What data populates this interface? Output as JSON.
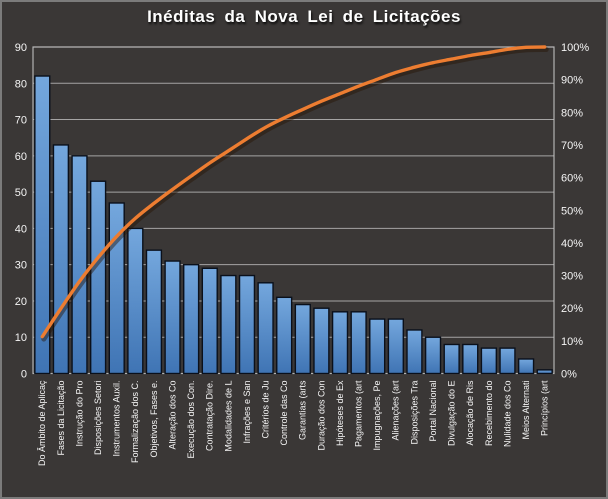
{
  "chart": {
    "background": "#3A3736",
    "frame_border": "#7B7B7B",
    "text_color": "#F5F5F5",
    "grid_color": "#C0C0C0"
  },
  "chart_data": {
    "type": "bar",
    "subtype": "pareto (bar + cumulative line)",
    "title": "Inéditas da Nova Lei de Licitações",
    "categories": [
      "Do Âmbito de Aplicaç",
      "Fases da Licitação",
      "Instrução do Pro",
      "Disposições Setori",
      "Instrumentos Auxil.",
      "Formalização dos C.",
      "Objetivos, Fases e.",
      "Alteração dos Co",
      "Execução dos Con.",
      "Contratação Dire.",
      "Modalidades de L",
      "Infrações e San",
      "Critérios de Ju",
      "Controle das Co",
      "Garantias (arts",
      "Duração dos Con",
      "Hipóteses de Ex",
      "Pagamentos (art",
      "Impugnações, Pe",
      "Alienações (art",
      "Disposições Tra",
      "Portal Nacional",
      "Divulgação do E",
      "Alocação de Ris",
      "Recebimento do",
      "Nulidade dos Co",
      "Meios Alternati",
      "Princípios (art"
    ],
    "series": [
      {
        "name": "bars",
        "type": "bar",
        "axis": "left",
        "values": [
          82,
          63,
          60,
          53,
          47,
          40,
          34,
          31,
          30,
          29,
          27,
          27,
          25,
          21,
          19,
          18,
          17,
          17,
          15,
          15,
          12,
          10,
          8,
          8,
          7,
          7,
          4,
          1
        ],
        "fill_top": "#74A7DD",
        "fill_bottom": "#3F74B4",
        "border": "#0A101B"
      },
      {
        "name": "cumulative_percent",
        "type": "line",
        "axis": "right",
        "values": [
          11.3,
          19.9,
          28.2,
          35.5,
          42.0,
          47.5,
          52.1,
          56.4,
          60.5,
          64.5,
          68.2,
          71.9,
          75.4,
          78.3,
          80.9,
          83.4,
          85.7,
          88.0,
          90.1,
          92.2,
          93.8,
          95.2,
          96.3,
          97.4,
          98.3,
          99.3,
          99.9,
          100.0
        ],
        "color": "#ED7D31",
        "smooth": true
      }
    ],
    "axes": {
      "left": {
        "min": 0,
        "max": 90,
        "step": 10,
        "ticks": [
          "0",
          "10",
          "20",
          "30",
          "40",
          "50",
          "60",
          "70",
          "80",
          "90"
        ]
      },
      "right": {
        "min": 0,
        "max": 100,
        "step": 10,
        "ticks": [
          "0%",
          "10%",
          "20%",
          "30%",
          "40%",
          "50%",
          "60%",
          "70%",
          "80%",
          "90%",
          "100%"
        ]
      }
    },
    "grid": true,
    "legend": "none"
  }
}
